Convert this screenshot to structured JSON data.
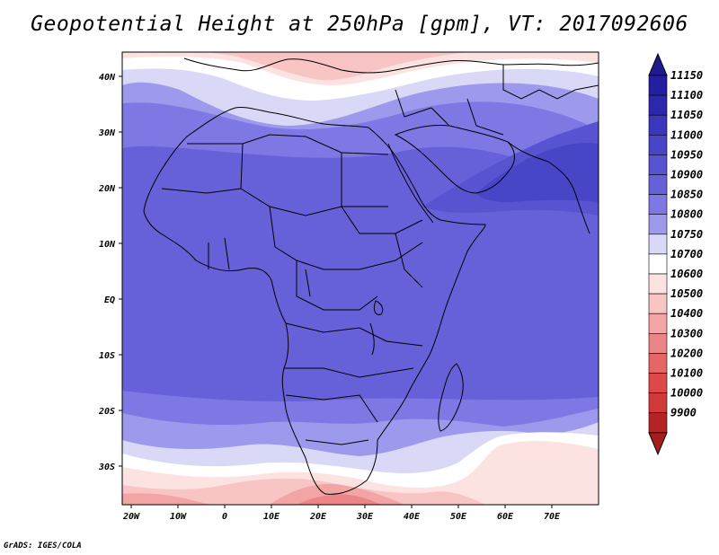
{
  "title": "Geopotential Height at 250hPa [gpm], VT: 2017092606",
  "credit": "GrADS: IGES/COLA",
  "x_axis_labels": [
    "20W",
    "10W",
    "0",
    "10E",
    "20E",
    "30E",
    "40E",
    "50E",
    "60E",
    "70E"
  ],
  "y_axis_labels": [
    "40N",
    "30N",
    "20N",
    "10N",
    "EQ",
    "10S",
    "20S",
    "30S"
  ],
  "colorbar": {
    "levels": [
      {
        "label": "11150",
        "color": "#241fa0"
      },
      {
        "label": "11100",
        "color": "#2c28ae"
      },
      {
        "label": "11050",
        "color": "#3a37bd"
      },
      {
        "label": "11000",
        "color": "#4845c7"
      },
      {
        "label": "10950",
        "color": "#5753d1"
      },
      {
        "label": "10900",
        "color": "#6661d8"
      },
      {
        "label": "10850",
        "color": "#7d78e3"
      },
      {
        "label": "10800",
        "color": "#9d99ec"
      },
      {
        "label": "10750",
        "color": "#d9d8f6"
      },
      {
        "label": "10700",
        "color": "#ffffff"
      },
      {
        "label": "10600",
        "color": "#fde2e2"
      },
      {
        "label": "10500",
        "color": "#f9c4c4"
      },
      {
        "label": "10400",
        "color": "#f3a4a4"
      },
      {
        "label": "10300",
        "color": "#ec8686"
      },
      {
        "label": "10200",
        "color": "#e56666"
      },
      {
        "label": "10100",
        "color": "#de4848"
      },
      {
        "label": "10000",
        "color": "#d23a3a"
      },
      {
        "label": "9900",
        "color": "#b52424"
      }
    ],
    "top_arrow_color": "#1f1a8f",
    "bottom_arrow_color": "#a51e1e"
  }
}
